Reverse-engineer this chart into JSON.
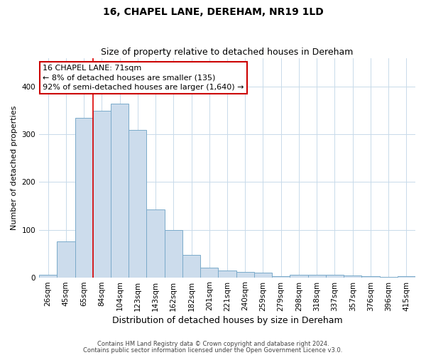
{
  "title": "16, CHAPEL LANE, DEREHAM, NR19 1LD",
  "subtitle": "Size of property relative to detached houses in Dereham",
  "xlabel": "Distribution of detached houses by size in Dereham",
  "ylabel": "Number of detached properties",
  "categories": [
    "26sqm",
    "45sqm",
    "65sqm",
    "84sqm",
    "104sqm",
    "123sqm",
    "143sqm",
    "162sqm",
    "182sqm",
    "201sqm",
    "221sqm",
    "240sqm",
    "259sqm",
    "279sqm",
    "298sqm",
    "318sqm",
    "337sqm",
    "357sqm",
    "376sqm",
    "396sqm",
    "415sqm"
  ],
  "values": [
    6,
    75,
    335,
    350,
    365,
    310,
    143,
    100,
    47,
    20,
    15,
    11,
    10,
    3,
    6,
    5,
    5,
    4,
    2,
    1,
    3
  ],
  "bar_color": "#ccdcec",
  "bar_edge_color": "#7aaaca",
  "red_line_x": 2.5,
  "red_line_color": "#dd0000",
  "ylim": [
    0,
    460
  ],
  "annotation_text": "16 CHAPEL LANE: 71sqm\n← 8% of detached houses are smaller (135)\n92% of semi-detached houses are larger (1,640) →",
  "annotation_box_color": "#ffffff",
  "annotation_box_edge": "#cc0000",
  "footnote1": "Contains HM Land Registry data © Crown copyright and database right 2024.",
  "footnote2": "Contains public sector information licensed under the Open Government Licence v3.0.",
  "background_color": "#ffffff",
  "grid_color": "#c8daea",
  "title_fontsize": 10,
  "subtitle_fontsize": 9,
  "tick_fontsize": 7.5,
  "ylabel_fontsize": 8,
  "xlabel_fontsize": 9,
  "annotation_fontsize": 8,
  "footnote_fontsize": 6
}
